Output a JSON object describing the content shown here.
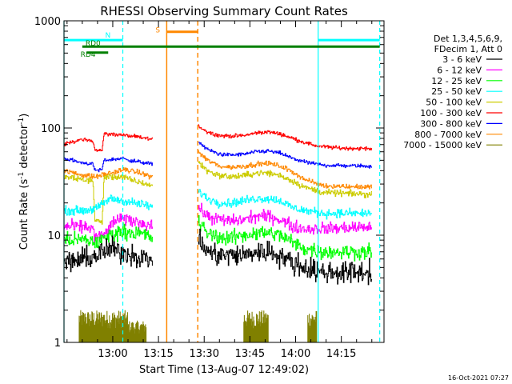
{
  "chart_data": {
    "type": "line",
    "title": "RHESSI Observing Summary Count Rates",
    "xlabel": "Start Time (13-Aug-07 12:49:02)",
    "ylabel": "Count Rate (s⁻¹ detector⁻¹)",
    "ylabel_parts": [
      "Count Rate (s",
      "-1",
      " detector",
      "-1",
      ")"
    ],
    "footer": "16-Oct-2021 07:27",
    "y_scale": "log",
    "ylim": [
      1,
      1000
    ],
    "xlim_minutes": [
      -5,
      100
    ],
    "x_ticks": [
      {
        "label": "13:00",
        "minute": 11
      },
      {
        "label": "13:15",
        "minute": 26
      },
      {
        "label": "13:30",
        "minute": 41
      },
      {
        "label": "13:45",
        "minute": 56
      },
      {
        "label": "14:00",
        "minute": 71
      },
      {
        "label": "14:15",
        "minute": 86
      }
    ],
    "y_ticks": [
      {
        "label": "1",
        "value": 1
      },
      {
        "label": "10",
        "value": 10
      },
      {
        "label": "100",
        "value": 100
      },
      {
        "label": "1000",
        "value": 1000
      }
    ],
    "legend": {
      "position": "right",
      "header": [
        "Det 1,3,4,5,6,9,",
        "FDecim 1, Att 0"
      ],
      "entries": [
        {
          "label": "3 - 6 keV",
          "color": "#000000"
        },
        {
          "label": "6 - 12 keV",
          "color": "#ff00ff"
        },
        {
          "label": "12 - 25 keV",
          "color": "#00ff00"
        },
        {
          "label": "25 - 50 keV",
          "color": "#00ffff"
        },
        {
          "label": "50 - 100 keV",
          "color": "#cccc00"
        },
        {
          "label": "100 - 300 keV",
          "color": "#ff0000"
        },
        {
          "label": "300 - 800 keV",
          "color": "#0000ff"
        },
        {
          "label": "800 - 7000 keV",
          "color": "#ff8800"
        },
        {
          "label": "7000 - 15000 keV",
          "color": "#808000"
        }
      ]
    },
    "series": [
      {
        "color": "#ff0000",
        "noise": 0.015,
        "segments": [
          [
            [
              -5,
              70
            ],
            [
              0.5,
              78
            ],
            [
              4.5,
              76
            ],
            [
              5,
              63
            ],
            [
              7.5,
              62
            ],
            [
              8,
              88
            ],
            [
              13,
              87
            ],
            [
              18,
              83
            ],
            [
              22,
              80
            ],
            [
              24,
              78
            ]
          ],
          [
            [
              39,
              105
            ],
            [
              42,
              92
            ],
            [
              46,
              85
            ],
            [
              50,
              84
            ],
            [
              54,
              85
            ],
            [
              58,
              90
            ],
            [
              62,
              92
            ],
            [
              66,
              88
            ],
            [
              70,
              80
            ],
            [
              74,
              73
            ],
            [
              78,
              68
            ],
            [
              85,
              65
            ],
            [
              96,
              64
            ]
          ]
        ]
      },
      {
        "color": "#0000ff",
        "noise": 0.015,
        "segments": [
          [
            [
              -5,
              52
            ],
            [
              0,
              48
            ],
            [
              4.5,
              46
            ],
            [
              5,
              40
            ],
            [
              7.5,
              41
            ],
            [
              8,
              50
            ],
            [
              14,
              52
            ],
            [
              18,
              49
            ],
            [
              22,
              47
            ],
            [
              24,
              46
            ]
          ],
          [
            [
              39,
              75
            ],
            [
              42,
              63
            ],
            [
              46,
              57
            ],
            [
              50,
              56
            ],
            [
              54,
              57
            ],
            [
              58,
              60
            ],
            [
              62,
              61
            ],
            [
              66,
              58
            ],
            [
              70,
              52
            ],
            [
              74,
              48
            ],
            [
              80,
              45
            ],
            [
              96,
              44
            ]
          ]
        ]
      },
      {
        "color": "#ff8800",
        "noise": 0.02,
        "segments": [
          [
            [
              -5,
              40
            ],
            [
              0,
              37
            ],
            [
              5,
              35
            ],
            [
              10,
              38
            ],
            [
              15,
              41
            ],
            [
              20,
              38
            ],
            [
              24,
              35
            ]
          ],
          [
            [
              39,
              60
            ],
            [
              42,
              50
            ],
            [
              46,
              44
            ],
            [
              50,
              43
            ],
            [
              54,
              44
            ],
            [
              58,
              46
            ],
            [
              62,
              47
            ],
            [
              66,
              44
            ],
            [
              70,
              39
            ],
            [
              74,
              33
            ],
            [
              80,
              29
            ],
            [
              96,
              28
            ]
          ]
        ]
      },
      {
        "color": "#cccc00",
        "noise": 0.025,
        "segments": [
          [
            [
              -5,
              35
            ],
            [
              1,
              33
            ],
            [
              4.5,
              32
            ],
            [
              5,
              14
            ],
            [
              7.5,
              13
            ],
            [
              8,
              35
            ],
            [
              14,
              35
            ],
            [
              18,
              32
            ],
            [
              22,
              30
            ],
            [
              24,
              29
            ]
          ],
          [
            [
              39,
              48
            ],
            [
              42,
              40
            ],
            [
              46,
              36
            ],
            [
              50,
              35
            ],
            [
              54,
              36
            ],
            [
              58,
              38
            ],
            [
              62,
              38
            ],
            [
              66,
              36
            ],
            [
              70,
              32
            ],
            [
              74,
              28
            ],
            [
              80,
              25
            ],
            [
              96,
              24
            ]
          ]
        ]
      },
      {
        "color": "#00ffff",
        "noise": 0.035,
        "segments": [
          [
            [
              -5,
              17
            ],
            [
              2,
              17
            ],
            [
              6,
              18
            ],
            [
              10,
              22
            ],
            [
              14,
              21
            ],
            [
              18,
              20
            ],
            [
              22,
              19
            ],
            [
              24,
              18
            ]
          ],
          [
            [
              39,
              26
            ],
            [
              42,
              22
            ],
            [
              46,
              20
            ],
            [
              50,
              20
            ],
            [
              54,
              21
            ],
            [
              58,
              22
            ],
            [
              62,
              22
            ],
            [
              66,
              21
            ],
            [
              70,
              18
            ],
            [
              74,
              17
            ],
            [
              80,
              16
            ],
            [
              96,
              16
            ]
          ]
        ]
      },
      {
        "color": "#ff00ff",
        "noise": 0.05,
        "segments": [
          [
            [
              -5,
              12
            ],
            [
              2,
              12
            ],
            [
              4.5,
              11.5
            ],
            [
              5,
              9.5
            ],
            [
              8,
              10
            ],
            [
              12,
              14
            ],
            [
              16,
              14
            ],
            [
              20,
              13
            ],
            [
              24,
              12.5
            ]
          ],
          [
            [
              39,
              18
            ],
            [
              42,
              15
            ],
            [
              46,
              14
            ],
            [
              50,
              13.5
            ],
            [
              54,
              14
            ],
            [
              58,
              15
            ],
            [
              62,
              15
            ],
            [
              66,
              14
            ],
            [
              70,
              12
            ],
            [
              74,
              11.5
            ],
            [
              80,
              11.5
            ],
            [
              96,
              12
            ]
          ]
        ]
      },
      {
        "color": "#00ff00",
        "noise": 0.06,
        "segments": [
          [
            [
              -5,
              9
            ],
            [
              2,
              9
            ],
            [
              6,
              8.5
            ],
            [
              10,
              10
            ],
            [
              14,
              11
            ],
            [
              18,
              10.5
            ],
            [
              22,
              10
            ],
            [
              24,
              9.5
            ]
          ],
          [
            [
              39,
              13
            ],
            [
              42,
              10.5
            ],
            [
              46,
              9.5
            ],
            [
              50,
              9.5
            ],
            [
              54,
              10
            ],
            [
              58,
              10.5
            ],
            [
              62,
              10.5
            ],
            [
              66,
              10
            ],
            [
              70,
              8.5
            ],
            [
              74,
              7.5
            ],
            [
              80,
              7
            ],
            [
              96,
              7
            ]
          ]
        ]
      },
      {
        "color": "#000000",
        "noise": 0.09,
        "segments": [
          [
            [
              -5,
              5.5
            ],
            [
              2,
              6
            ],
            [
              6,
              6.5
            ],
            [
              10,
              7.5
            ],
            [
              14,
              7
            ],
            [
              18,
              6.5
            ],
            [
              22,
              6
            ],
            [
              24,
              6
            ]
          ],
          [
            [
              39,
              9
            ],
            [
              42,
              7
            ],
            [
              46,
              6.5
            ],
            [
              50,
              6.5
            ],
            [
              54,
              6.5
            ],
            [
              58,
              7
            ],
            [
              62,
              7
            ],
            [
              66,
              6.5
            ],
            [
              70,
              5.5
            ],
            [
              74,
              5
            ],
            [
              80,
              4.5
            ],
            [
              96,
              4.5
            ]
          ]
        ]
      },
      {
        "color": "#808000",
        "type": "bars",
        "ranges": [
          [
            0,
            16,
            2.0
          ],
          [
            16,
            22,
            1.6
          ],
          [
            54,
            62,
            2.0
          ],
          [
            75,
            78,
            2.0
          ]
        ]
      }
    ],
    "markers": {
      "night_vlines": [
        {
          "minute": -5,
          "style": "solid"
        },
        {
          "minute": 14.3,
          "style": "dashed"
        },
        {
          "minute": 78.4,
          "style": "solid"
        },
        {
          "minute": 98.6,
          "style": "dashed"
        }
      ],
      "saa_vlines": [
        {
          "minute": 28.7,
          "style": "solid"
        },
        {
          "minute": 38.9,
          "style": "dashed"
        }
      ],
      "bars": [
        {
          "label": "N",
          "color": "#00ffff",
          "value": 660,
          "ranges": [
            [
              -5,
              14.3
            ],
            [
              78.4,
              98.6
            ]
          ]
        },
        {
          "label": "S",
          "color": "#ff8800",
          "value": 790,
          "ranges": [
            [
              28.7,
              38.9
            ]
          ]
        },
        {
          "label": "RD0",
          "color": "#008000",
          "value": 575,
          "ranges": [
            [
              1,
              98.6
            ]
          ]
        },
        {
          "label": "RD4",
          "color": "#008000",
          "value": 505,
          "ranges": [
            [
              2.5,
              9.5
            ]
          ]
        }
      ]
    }
  }
}
